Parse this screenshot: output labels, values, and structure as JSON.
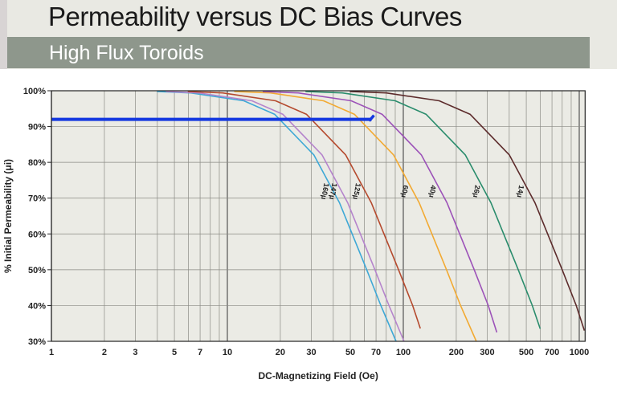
{
  "header": {
    "title": "Permeability versus DC Bias Curves",
    "subtitle": "High Flux Toroids"
  },
  "chart_data": {
    "type": "line",
    "title": "Permeability versus DC Bias Curves",
    "subtitle": "High Flux Toroids",
    "xlabel": "DC-Magnetizing Field (Oe)",
    "ylabel": "% Initial Permeability (μi)",
    "xscale": "log",
    "xlim": [
      1,
      1080
    ],
    "ylim": [
      30,
      100
    ],
    "grid": true,
    "x_ticks": [
      "1",
      "2",
      "3",
      "5",
      "7",
      "10",
      "20",
      "30",
      "50",
      "70",
      "100",
      "200",
      "300",
      "500",
      "700",
      "1000"
    ],
    "x_tick_values": [
      1,
      2,
      3,
      5,
      7,
      10,
      20,
      30,
      50,
      70,
      100,
      200,
      300,
      500,
      700,
      1000
    ],
    "y_ticks": [
      "30%",
      "40%",
      "50%",
      "60%",
      "70%",
      "80%",
      "90%",
      "100%"
    ],
    "y_tick_values": [
      30,
      40,
      50,
      60,
      70,
      80,
      90,
      100
    ],
    "series": [
      {
        "name": "160μ",
        "color": "#3ea8d6",
        "x": [
          4,
          6.2,
          12.4,
          18.6,
          31,
          43.4,
          62,
          74.4,
          91
        ],
        "y": [
          99.8,
          99.4,
          97.2,
          93.4,
          82.1,
          68.7,
          50,
          40.1,
          30
        ]
      },
      {
        "name": "147μ",
        "color": "#b584cc",
        "x": [
          4.5,
          6.9,
          13.8,
          20.7,
          34.5,
          48.3,
          69,
          82.8,
          101
        ],
        "y": [
          99.8,
          99.4,
          97.2,
          93.4,
          82.1,
          68.7,
          50,
          40.1,
          30
        ]
      },
      {
        "name": "125μ",
        "color": "#b54a2e",
        "x": [
          6,
          9.4,
          18.8,
          28.2,
          47,
          65.8,
          94,
          112.8,
          125
        ],
        "y": [
          99.8,
          99.4,
          97.2,
          93.4,
          82.1,
          68.7,
          50,
          40.1,
          33.6
        ]
      },
      {
        "name": "60μ",
        "color": "#f2aa33",
        "x": [
          11,
          17.6,
          35.2,
          52.8,
          88,
          123.2,
          176,
          211.2,
          260
        ],
        "y": [
          99.8,
          99.4,
          97.2,
          93.4,
          82.1,
          68.7,
          50,
          40.1,
          30
        ]
      },
      {
        "name": "40μ",
        "color": "#9c52b8",
        "x": [
          16,
          25.3,
          50.6,
          75.9,
          126.5,
          177.1,
          253,
          303.6,
          340
        ],
        "y": [
          99.8,
          99.4,
          97.2,
          93.4,
          82.1,
          68.7,
          50,
          40.1,
          32.5
        ]
      },
      {
        "name": "26μ",
        "color": "#2a8c6c",
        "x": [
          28,
          45,
          90,
          135,
          225,
          315,
          450,
          540,
          600
        ],
        "y": [
          99.8,
          99.4,
          97.2,
          93.4,
          82.1,
          68.7,
          50,
          40.1,
          33.5
        ]
      },
      {
        "name": "14μ",
        "color": "#5c2b2b",
        "x": [
          50,
          80,
          160,
          240,
          400,
          560,
          800,
          960,
          1070
        ],
        "y": [
          99.8,
          99.4,
          97.2,
          93.4,
          82.1,
          68.7,
          50,
          40.1,
          33
        ]
      }
    ],
    "annotation_line": {
      "color": "#1438e0",
      "x": [
        1,
        66
      ],
      "y": [
        92,
        92
      ]
    }
  }
}
